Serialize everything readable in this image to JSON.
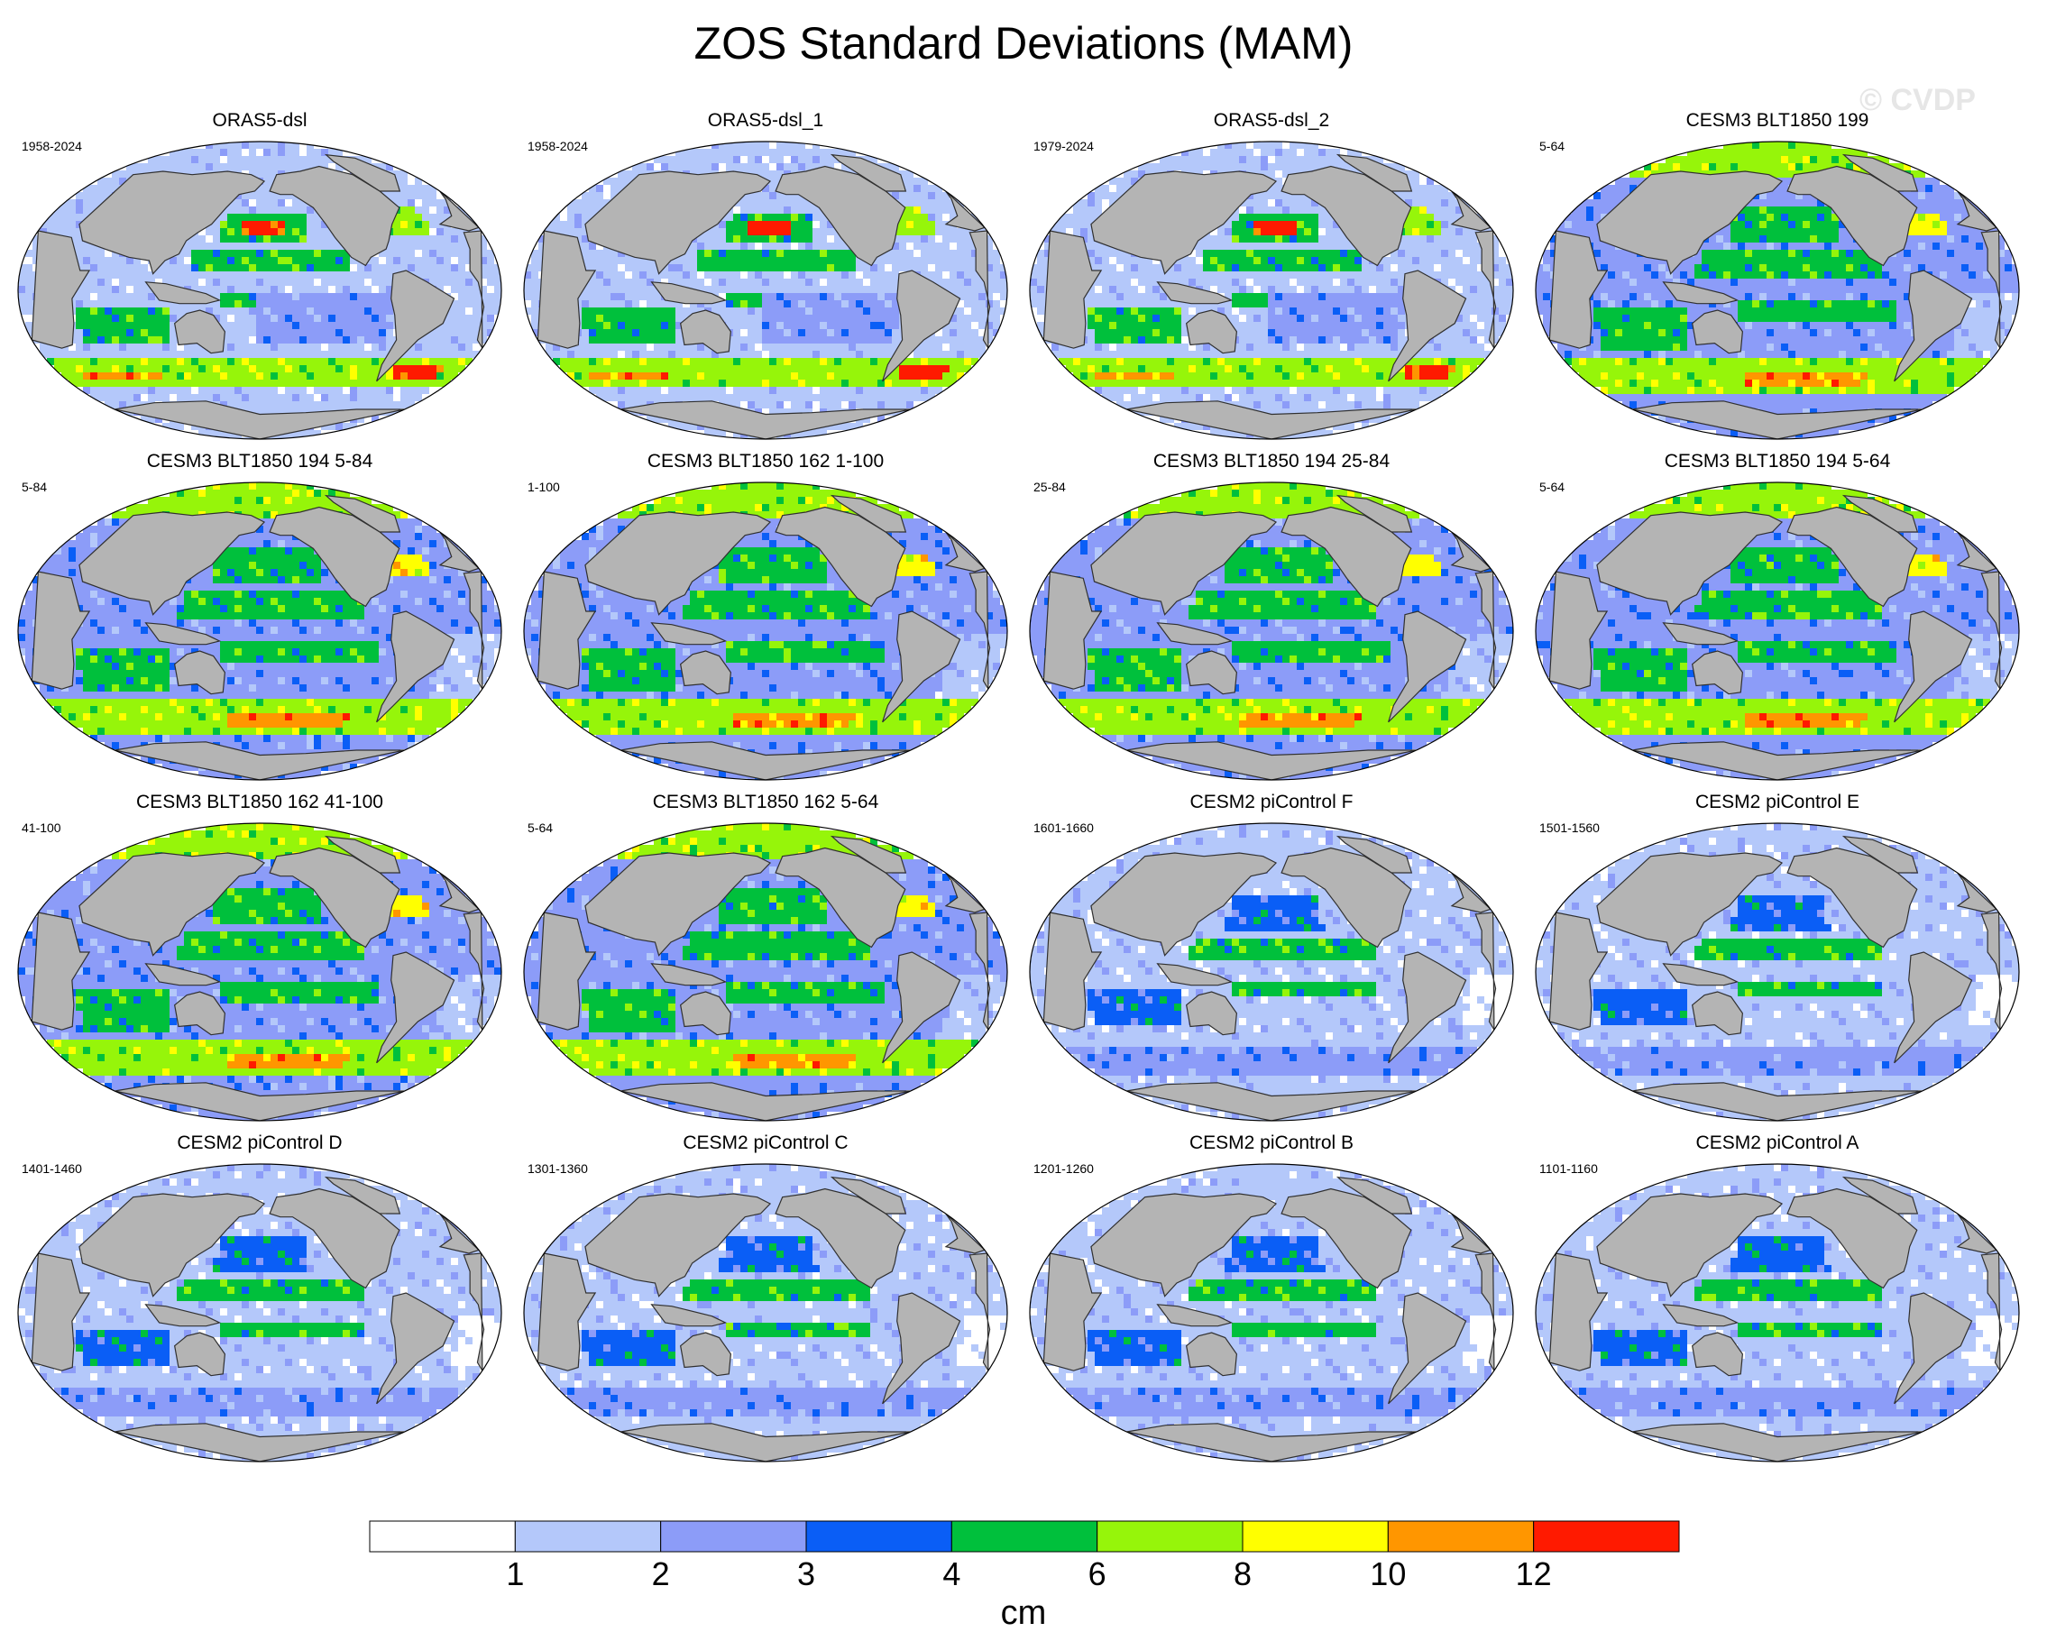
{
  "title": "ZOS Standard Deviations (MAM)",
  "watermark": "© CVDP",
  "chart_data": {
    "type": "heatmap",
    "title": "ZOS Standard Deviations (MAM)",
    "colorbar": {
      "units": "cm",
      "levels": [
        1,
        2,
        3,
        4,
        6,
        8,
        10,
        12
      ],
      "colors": [
        "#ffffff",
        "#b4c8fa",
        "#8c9cf8",
        "#0a5ef6",
        "#00c03c",
        "#96f50a",
        "#ffff00",
        "#ff9600",
        "#ff1a00"
      ],
      "level_labels": [
        "1",
        "2",
        "3",
        "4",
        "6",
        "8",
        "10",
        "12"
      ]
    },
    "colors": {
      "land": "#b4b4b4",
      "coast": "#303030",
      "ice": "#ffffff"
    },
    "panels": [
      {
        "title": "ORAS5-dsl",
        "years": "1958-2024",
        "regime": "obs"
      },
      {
        "title": "ORAS5-dsl_1",
        "years": "1958-2024",
        "regime": "obs"
      },
      {
        "title": "ORAS5-dsl_2",
        "years": "1979-2024",
        "regime": "obs"
      },
      {
        "title": "CESM3 BLT1850 199",
        "years": "5-64",
        "regime": "cesm3"
      },
      {
        "title": "CESM3 BLT1850 194 5-84",
        "years": "5-84",
        "regime": "cesm3"
      },
      {
        "title": "CESM3 BLT1850 162 1-100",
        "years": "1-100",
        "regime": "cesm3"
      },
      {
        "title": "CESM3 BLT1850 194 25-84",
        "years": "25-84",
        "regime": "cesm3"
      },
      {
        "title": "CESM3 BLT1850 194 5-64",
        "years": "5-64",
        "regime": "cesm3"
      },
      {
        "title": "CESM3 BLT1850 162 41-100",
        "years": "41-100",
        "regime": "cesm3"
      },
      {
        "title": "CESM3 BLT1850 162 5-64",
        "years": "5-64",
        "regime": "cesm3"
      },
      {
        "title": "CESM2 piControl F",
        "years": "1601-1660",
        "regime": "cesm2"
      },
      {
        "title": "CESM2 piControl E",
        "years": "1501-1560",
        "regime": "cesm2"
      },
      {
        "title": "CESM2 piControl D",
        "years": "1401-1460",
        "regime": "cesm2"
      },
      {
        "title": "CESM2 piControl C",
        "years": "1301-1360",
        "regime": "cesm2"
      },
      {
        "title": "CESM2 piControl B",
        "years": "1201-1260",
        "regime": "cesm2"
      },
      {
        "title": "CESM2 piControl A",
        "years": "1101-1160",
        "regime": "cesm2"
      }
    ],
    "regimes": {
      "obs": {
        "background_level": 1,
        "bands": [
          {
            "lat": [
              30,
              45
            ],
            "lon": [
              150,
              220
            ],
            "level": 4
          },
          {
            "lat": [
              34,
              42
            ],
            "lon": [
              165,
              200
            ],
            "level": 8
          },
          {
            "lat": [
              32,
              50
            ],
            "lon": [
              285,
              320
            ],
            "level": 5
          },
          {
            "lat": [
              10,
              24
            ],
            "lon": [
              130,
              250
            ],
            "level": 4
          },
          {
            "lat": [
              -12,
              -3
            ],
            "lon": [
              150,
              250
            ],
            "level": 4
          },
          {
            "lat": [
              -30,
              -10
            ],
            "lon": [
              40,
              110
            ],
            "level": 4
          },
          {
            "lat": [
              -58,
              -42
            ],
            "lon": [
              0,
              360
            ],
            "level": 5
          },
          {
            "lat": [
              -55,
              -48
            ],
            "lon": [
              20,
              90
            ],
            "level": 7
          },
          {
            "lat": [
              -52,
              -44
            ],
            "lon": [
              300,
              340
            ],
            "level": 8
          },
          {
            "lat": [
              -30,
              0
            ],
            "lon": [
              180,
              280
            ],
            "level": 2
          },
          {
            "lat": [
              -40,
              0
            ],
            "lon": [
              320,
              360
            ],
            "level": 1
          }
        ]
      },
      "cesm3": {
        "background_level": 2,
        "bands": [
          {
            "lat": [
              70,
              88
            ],
            "lon": [
              0,
              360
            ],
            "level": 5
          },
          {
            "lat": [
              28,
              50
            ],
            "lon": [
              140,
              230
            ],
            "level": 4
          },
          {
            "lat": [
              35,
              48
            ],
            "lon": [
              285,
              320
            ],
            "level": 6
          },
          {
            "lat": [
              5,
              25
            ],
            "lon": [
              120,
              260
            ],
            "level": 4
          },
          {
            "lat": [
              -20,
              -5
            ],
            "lon": [
              150,
              270
            ],
            "level": 4
          },
          {
            "lat": [
              -35,
              -10
            ],
            "lon": [
              40,
              110
            ],
            "level": 4
          },
          {
            "lat": [
              -62,
              -40
            ],
            "lon": [
              0,
              360
            ],
            "level": 5
          },
          {
            "lat": [
              -58,
              -48
            ],
            "lon": [
              150,
              260
            ],
            "level": 7
          },
          {
            "lat": [
              -40,
              0
            ],
            "lon": [
              320,
              360
            ],
            "level": 1
          }
        ]
      },
      "cesm2": {
        "background_level": 1,
        "bands": [
          {
            "lat": [
              25,
              45
            ],
            "lon": [
              145,
              220
            ],
            "level": 3
          },
          {
            "lat": [
              5,
              22
            ],
            "lon": [
              120,
              260
            ],
            "level": 4
          },
          {
            "lat": [
              -15,
              -5
            ],
            "lon": [
              150,
              260
            ],
            "level": 4
          },
          {
            "lat": [
              -30,
              -10
            ],
            "lon": [
              40,
              110
            ],
            "level": 3
          },
          {
            "lat": [
              -62,
              -45
            ],
            "lon": [
              0,
              360
            ],
            "level": 2
          },
          {
            "lat": [
              -30,
              0
            ],
            "lon": [
              330,
              360
            ],
            "level": 0
          }
        ]
      }
    }
  }
}
